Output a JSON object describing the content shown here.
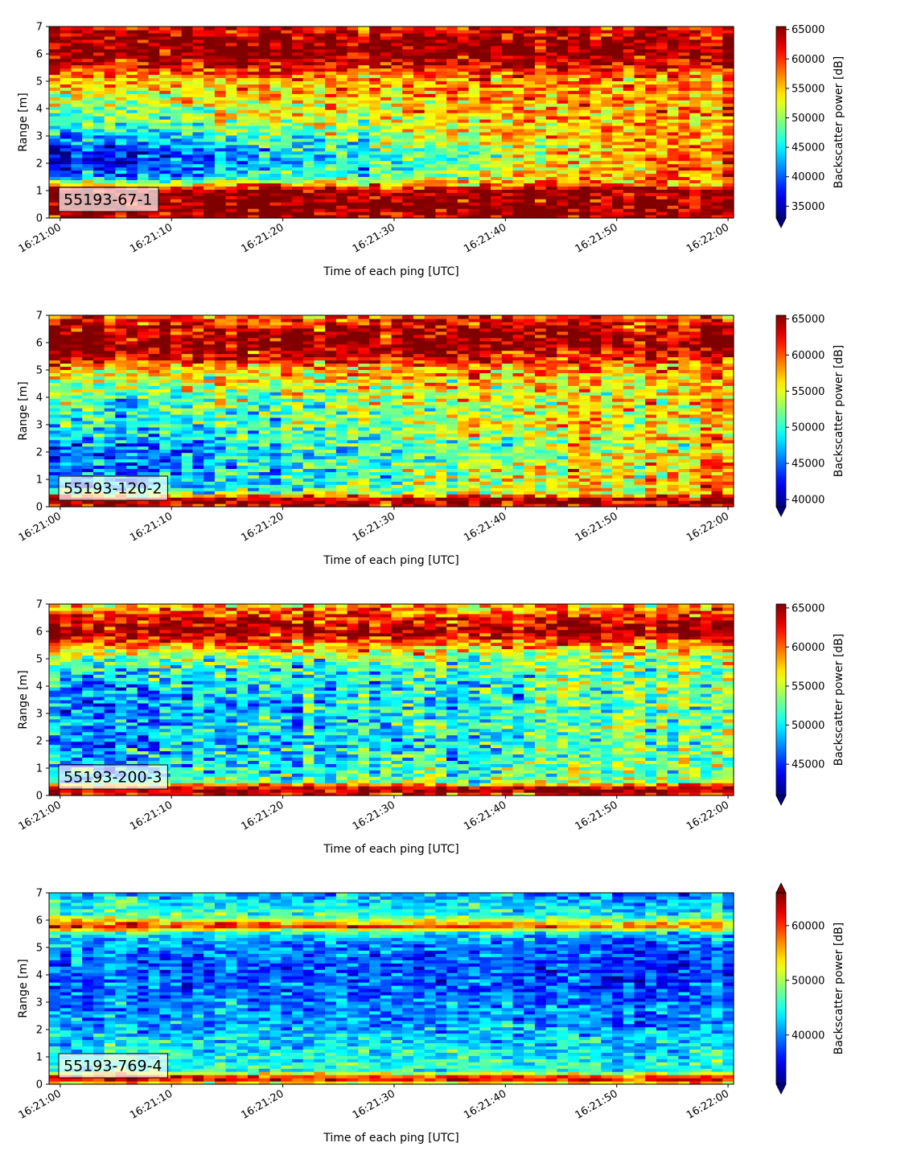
{
  "colors": {
    "colormap": "jet",
    "label_box_fill": "#ffffff",
    "label_box_edge": "#000000"
  },
  "chart_data": [
    {
      "type": "heatmap",
      "panel_label": "55193-67-1",
      "xlabel": "Time of each ping [UTC]",
      "ylabel": "Range [m]",
      "colorbar_label": "Backscatter power [dB]",
      "x_ticks": [
        "16:21:00",
        "16:21:10",
        "16:21:20",
        "16:21:30",
        "16:21:40",
        "16:21:50",
        "16:22:00"
      ],
      "y_ticks": [
        0,
        1,
        2,
        3,
        4,
        5,
        6,
        7
      ],
      "ylim": [
        0,
        7
      ],
      "color_range": [
        33000,
        65500
      ],
      "colorbar_ticks": [
        35000,
        40000,
        45000,
        50000,
        55000,
        60000,
        65000
      ],
      "colorbar_extend": "min",
      "profile": {
        "range_m": [
          0,
          0.25,
          0.5,
          1.0,
          1.25,
          1.5,
          2.0,
          2.5,
          3.0,
          3.5,
          4.0,
          4.5,
          5.0,
          5.5,
          6.0,
          6.5,
          7.0
        ],
        "power_start": [
          63000,
          65500,
          65500,
          65500,
          52000,
          40000,
          35000,
          36000,
          42000,
          47000,
          50000,
          52000,
          54000,
          60000,
          65500,
          65500,
          61000
        ],
        "power_end": [
          63000,
          65500,
          65500,
          65500,
          59000,
          58000,
          59000,
          59000,
          58000,
          58000,
          58000,
          58000,
          58000,
          61000,
          65500,
          65500,
          61000
        ]
      },
      "noise": 5500
    },
    {
      "type": "heatmap",
      "panel_label": "55193-120-2",
      "xlabel": "Time of each ping [UTC]",
      "ylabel": "Range [m]",
      "colorbar_label": "Backscatter power [dB]",
      "x_ticks": [
        "16:21:00",
        "16:21:10",
        "16:21:20",
        "16:21:30",
        "16:21:40",
        "16:21:50",
        "16:22:00"
      ],
      "y_ticks": [
        0,
        1,
        2,
        3,
        4,
        5,
        6,
        7
      ],
      "ylim": [
        0,
        7
      ],
      "color_range": [
        39000,
        65500
      ],
      "colorbar_ticks": [
        40000,
        45000,
        50000,
        55000,
        60000,
        65000
      ],
      "colorbar_extend": "min",
      "profile": {
        "range_m": [
          0,
          0.25,
          0.5,
          0.75,
          1.0,
          1.5,
          2.0,
          2.5,
          3.0,
          3.5,
          4.0,
          4.5,
          5.0,
          5.5,
          6.0,
          6.5,
          7.0
        ],
        "power_start": [
          62000,
          65500,
          52000,
          44000,
          45000,
          44000,
          43000,
          46000,
          49000,
          48000,
          50000,
          53000,
          56000,
          63000,
          65500,
          64000,
          60000
        ],
        "power_end": [
          62000,
          65500,
          57000,
          58000,
          59000,
          58000,
          57000,
          57000,
          57000,
          57000,
          57000,
          57000,
          58000,
          62000,
          65500,
          64000,
          60000
        ]
      },
      "noise": 5000
    },
    {
      "type": "heatmap",
      "panel_label": "55193-200-3",
      "xlabel": "Time of each ping [UTC]",
      "ylabel": "Range [m]",
      "colorbar_label": "Backscatter power [dB]",
      "x_ticks": [
        "16:21:00",
        "16:21:10",
        "16:21:20",
        "16:21:30",
        "16:21:40",
        "16:21:50",
        "16:22:00"
      ],
      "y_ticks": [
        0,
        1,
        2,
        3,
        4,
        5,
        6,
        7
      ],
      "ylim": [
        0,
        7
      ],
      "color_range": [
        41000,
        65500
      ],
      "colorbar_ticks": [
        45000,
        50000,
        55000,
        60000,
        65000
      ],
      "colorbar_extend": "min",
      "profile": {
        "range_m": [
          0,
          0.25,
          0.5,
          1.0,
          1.5,
          2.0,
          2.5,
          3.0,
          3.5,
          4.0,
          4.5,
          5.0,
          5.5,
          6.0,
          6.5,
          7.0
        ],
        "power_start": [
          61000,
          65500,
          52000,
          49000,
          48000,
          47000,
          48000,
          47000,
          47000,
          48000,
          50000,
          53000,
          60000,
          65500,
          62000,
          58000
        ],
        "power_end": [
          61000,
          65500,
          54000,
          53000,
          53000,
          53000,
          53000,
          53000,
          53000,
          53000,
          53000,
          54000,
          58000,
          65000,
          62000,
          58000
        ]
      },
      "noise": 4500
    },
    {
      "type": "heatmap",
      "panel_label": "55193-769-4",
      "xlabel": "Time of each ping [UTC]",
      "ylabel": "Range [m]",
      "colorbar_label": "Backscatter power [dB]",
      "x_ticks": [
        "16:21:00",
        "16:21:10",
        "16:21:20",
        "16:21:30",
        "16:21:40",
        "16:21:50",
        "16:22:00"
      ],
      "y_ticks": [
        0,
        1,
        2,
        3,
        4,
        5,
        6,
        7
      ],
      "ylim": [
        0,
        7
      ],
      "color_range": [
        31000,
        66000
      ],
      "colorbar_ticks": [
        40000,
        50000,
        60000
      ],
      "colorbar_extend": "both",
      "profile": {
        "range_m": [
          0,
          0.2,
          0.35,
          0.5,
          1.0,
          1.5,
          2.0,
          2.5,
          3.0,
          3.5,
          4.0,
          4.5,
          5.0,
          5.5,
          5.8,
          6.2,
          6.6,
          7.0
        ],
        "power_start": [
          50000,
          64000,
          58000,
          47000,
          45000,
          44000,
          42000,
          41000,
          40000,
          39000,
          39000,
          40000,
          41000,
          44000,
          62000,
          47000,
          45000,
          42000
        ],
        "power_end": [
          50000,
          64000,
          55000,
          45000,
          44000,
          43000,
          41000,
          40000,
          39000,
          38000,
          37000,
          37000,
          38000,
          41000,
          58000,
          44000,
          42000,
          40000
        ]
      },
      "noise": 4500
    }
  ]
}
